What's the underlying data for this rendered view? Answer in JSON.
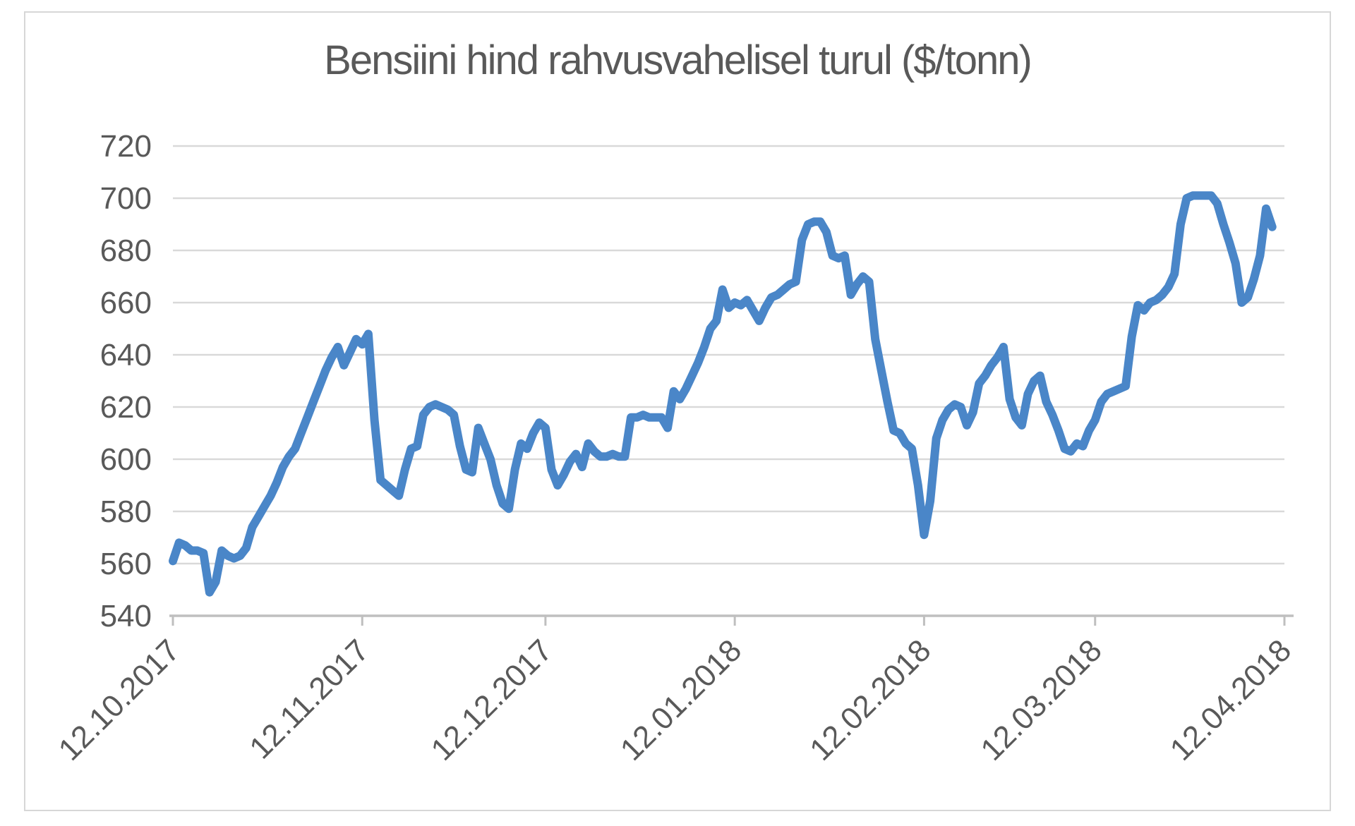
{
  "chart_data": {
    "type": "line",
    "title": "Bensiini hind rahvusvahelisel turul ($/tonn)",
    "xlabel": "",
    "ylabel": "",
    "grid": true,
    "legend": "none",
    "ylim": [
      540,
      720
    ],
    "y_ticks": [
      540,
      560,
      580,
      600,
      620,
      640,
      660,
      680,
      700,
      720
    ],
    "x_tick_labels": [
      "12.10.2017",
      "12.11.2017",
      "12.12.2017",
      "12.01.2018",
      "12.02.2018",
      "12.03.2018",
      "12.04.2018"
    ],
    "x_tick_days": [
      0,
      31,
      61,
      92,
      123,
      151,
      182
    ],
    "x_range_days": [
      0,
      182
    ],
    "series": [
      {
        "name": "Bensiini hind ($/tonn)",
        "color": "#4a86c8",
        "start_date": "12.10.2017",
        "day_step": 1,
        "values": [
          561,
          568,
          567,
          565,
          565,
          564,
          549,
          553,
          565,
          563,
          562,
          563,
          566,
          574,
          578,
          582,
          586,
          591,
          597,
          601,
          604,
          610,
          616,
          622,
          628,
          634,
          639,
          643,
          636,
          641,
          646,
          644,
          648,
          615,
          592,
          590,
          588,
          586,
          596,
          604,
          605,
          617,
          620,
          621,
          620,
          619,
          617,
          605,
          596,
          595,
          612,
          606,
          600,
          590,
          583,
          581,
          596,
          606,
          604,
          610,
          614,
          612,
          596,
          590,
          594,
          599,
          602,
          597,
          606,
          603,
          601,
          601,
          602,
          601,
          601,
          616,
          616,
          617,
          616,
          616,
          616,
          612,
          626,
          623,
          627,
          632,
          637,
          643,
          650,
          653,
          665,
          658,
          660,
          659,
          661,
          657,
          653,
          658,
          662,
          663,
          665,
          667,
          668,
          684,
          690,
          691,
          691,
          687,
          678,
          677,
          678,
          663,
          667,
          670,
          668,
          646,
          634,
          622,
          611,
          610,
          606,
          604,
          590,
          571,
          584,
          608,
          615,
          619,
          621,
          620,
          613,
          618,
          629,
          632,
          636,
          639,
          643,
          623,
          616,
          613,
          625,
          630,
          632,
          622,
          617,
          611,
          604,
          603,
          606,
          605,
          611,
          615,
          622,
          625,
          626,
          627,
          628,
          647,
          659,
          657,
          660,
          661,
          663,
          666,
          671,
          690,
          700,
          701,
          701,
          701,
          701,
          698,
          690,
          683,
          675,
          660,
          662,
          669,
          678,
          696,
          689
        ]
      }
    ],
    "style": {
      "line_color": "#4a86c8",
      "line_width": 12,
      "gridline_color": "#d9d9d9",
      "axis_line_color": "#bfbfbf",
      "tick_text_color": "#595959",
      "title_color": "#595959",
      "frame_border_color": "#d7d7d7",
      "background": "#ffffff"
    }
  }
}
